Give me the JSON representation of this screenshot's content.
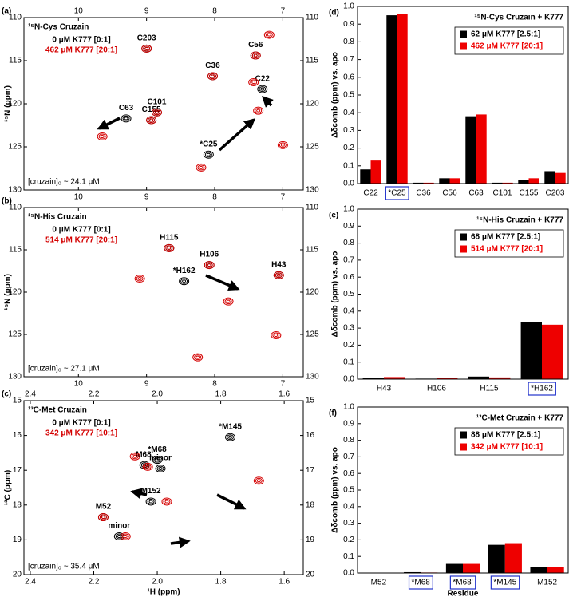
{
  "chart_data": [
    {
      "type": "scatter",
      "panel": "(a)",
      "title": "¹⁵N-Cys Cruzain",
      "ylabel": "¹⁵N (ppm)",
      "note": "[cruzain]₀ ~ 24.1 μM",
      "xlim": [
        10.8,
        6.7
      ],
      "ylim": [
        130,
        110
      ],
      "xticks": [
        10,
        9,
        8,
        7
      ],
      "yticks": [
        110,
        115,
        120,
        125,
        130
      ],
      "series": [
        {
          "name": "0 μM K777 [0:1]",
          "color": "#000000",
          "x": [
            9.0,
            7.4,
            8.03,
            7.3,
            9.3,
            8.85,
            8.93,
            8.09
          ],
          "values": [
            113.6,
            114.4,
            116.8,
            118.3,
            121.7,
            121.0,
            121.9,
            125.9
          ],
          "labels": [
            "C203",
            "C56",
            "C36",
            "C22",
            "C63",
            "C101",
            "C155",
            "*C25"
          ]
        },
        {
          "name": "462 μM K777 [20:1]",
          "color": "#d40000",
          "x": [
            9.0,
            7.4,
            8.03,
            7.43,
            9.65,
            8.85,
            8.93,
            7.36,
            7.2,
            7.0,
            8.2
          ],
          "values": [
            113.6,
            114.4,
            116.8,
            117.5,
            123.8,
            121.0,
            121.9,
            120.8,
            112.0,
            124.8,
            127.4
          ]
        }
      ]
    },
    {
      "type": "scatter",
      "panel": "(b)",
      "title": "¹⁵N-His Cruzain",
      "ylabel": "¹⁵N (ppm)",
      "note": "[cruzain]₀ ~ 27.1 μM",
      "xlim": [
        10.8,
        6.7
      ],
      "ylim": [
        130,
        110
      ],
      "xticks": [
        10,
        9,
        8,
        7
      ],
      "yticks": [
        110,
        115,
        120,
        125,
        130
      ],
      "series": [
        {
          "name": "0 μM K777 [0:1]",
          "color": "#000000",
          "x": [
            8.67,
            8.08,
            7.06,
            8.45
          ],
          "values": [
            114.8,
            116.8,
            118.0,
            118.7
          ],
          "labels": [
            "H115",
            "H106",
            "H43",
            "*H162"
          ]
        },
        {
          "name": "514 μM K777 [20:1]",
          "color": "#d40000",
          "x": [
            8.67,
            8.08,
            7.06,
            7.8,
            9.1,
            7.1,
            8.25
          ],
          "values": [
            114.8,
            116.8,
            118.0,
            121.1,
            118.4,
            125.1,
            127.7
          ]
        }
      ]
    },
    {
      "type": "scatter",
      "panel": "(c)",
      "title": "¹³C-Met Cruzain",
      "xlabel": "¹H (ppm)",
      "ylabel": "¹³C (ppm)",
      "note": "[cruzain]₀ ~ 35.4 μM",
      "xlim": [
        2.42,
        1.54
      ],
      "ylim": [
        20,
        15
      ],
      "xticks": [
        2.4,
        2.2,
        {
          "value": 2,
          "label": "2.0"
        },
        1.8,
        1.6
      ],
      "yticks": [
        15,
        16,
        17,
        18,
        19,
        20
      ],
      "series": [
        {
          "name": "0 μM K777 [0:1]",
          "color": "#000000",
          "x": [
            2.0,
            2.04,
            1.77,
            2.17,
            2.02,
            2.12,
            1.99
          ],
          "values": [
            16.7,
            16.85,
            16.05,
            18.35,
            17.9,
            18.9,
            16.95
          ],
          "labels": [
            "*M68",
            "M68'",
            "*M145",
            "M52",
            "M152",
            "minor",
            "minor"
          ]
        },
        {
          "name": "342 μM K777 [10:1]",
          "color": "#d40000",
          "x": [
            2.07,
            2.03,
            1.68,
            2.17,
            1.97,
            2.1
          ],
          "values": [
            16.6,
            16.9,
            17.3,
            18.35,
            17.9,
            18.9
          ]
        }
      ]
    },
    {
      "type": "bar",
      "panel": "(d)",
      "title": "¹⁵N-Cys Cruzain + K777",
      "ylabel": "Δδcomb (ppm) vs. apo",
      "categories": [
        "C22",
        "*C25",
        "C36",
        "C56",
        "C63",
        "C101",
        "C155",
        "C203"
      ],
      "ylim": [
        0,
        1
      ],
      "yticks": [
        {
          "value": 0,
          "label": "0.0"
        },
        0.1,
        0.2,
        0.3,
        0.4,
        0.5,
        0.6,
        0.7,
        0.8,
        0.9,
        {
          "value": 1,
          "label": "1.0"
        }
      ],
      "series": [
        {
          "name": "62 μM K777 [2.5:1]",
          "color": "#000000",
          "values": [
            0.08,
            0.95,
            0.005,
            0.03,
            0.38,
            0.005,
            0.02,
            0.07
          ]
        },
        {
          "name": "462 μM K777 [20:1]",
          "color": "#ee0000",
          "values": [
            0.13,
            0.955,
            0.005,
            0.03,
            0.39,
            0.005,
            0.03,
            0.06
          ]
        }
      ]
    },
    {
      "type": "bar",
      "panel": "(e)",
      "title": "¹⁵N-His Cruzain + K777",
      "ylabel": "Δδcomb (ppm) vs. apo",
      "categories": [
        "H43",
        "H106",
        "H115",
        "*H162"
      ],
      "ylim": [
        0,
        1
      ],
      "yticks": [
        {
          "value": 0,
          "label": "0.0"
        },
        0.1,
        0.2,
        0.3,
        0.4,
        0.5,
        0.6,
        0.7,
        0.8,
        0.9,
        {
          "value": 1,
          "label": "1.0"
        }
      ],
      "series": [
        {
          "name": "68 μM K777 [2.5:1]",
          "color": "#000000",
          "values": [
            0.005,
            0.003,
            0.015,
            0.335
          ]
        },
        {
          "name": "514 μM K777 [20:1]",
          "color": "#ee0000",
          "values": [
            0.012,
            0.008,
            0.01,
            0.32
          ]
        }
      ]
    },
    {
      "type": "bar",
      "panel": "(f)",
      "title": "¹³C-Met Cruzain + K777",
      "ylabel": "Δδcomb (ppm) vs. apo",
      "xlabel": "Residue",
      "categories": [
        "M52",
        "*M68",
        "*M68'",
        "*M145",
        "M152"
      ],
      "ylim": [
        0,
        1
      ],
      "yticks": [
        {
          "value": 0,
          "label": "0.0"
        },
        0.1,
        0.2,
        0.3,
        0.4,
        0.5,
        0.6,
        0.7,
        0.8,
        0.9,
        {
          "value": 1,
          "label": "1.0"
        }
      ],
      "series": [
        {
          "name": "88 μM K777 [2.5:1]",
          "color": "#000000",
          "values": [
            0,
            0.005,
            0.055,
            0.17,
            0.035
          ]
        },
        {
          "name": "342 μM K777 [10:1]",
          "color": "#ee0000",
          "values": [
            0,
            0.003,
            0.055,
            0.18,
            0.035
          ]
        }
      ]
    }
  ]
}
